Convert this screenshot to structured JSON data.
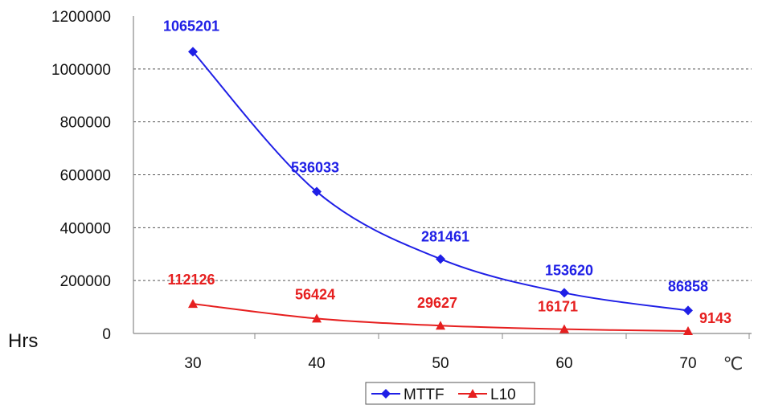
{
  "chart_data": {
    "type": "line",
    "x": [
      30,
      40,
      50,
      60,
      70
    ],
    "x_tick_labels": [
      "30",
      "40",
      "50",
      "60",
      "70"
    ],
    "y_tick_labels": [
      "0",
      "200000",
      "400000",
      "600000",
      "800000",
      "1000000",
      "1200000"
    ],
    "ylim": [
      0,
      1200000
    ],
    "ylabel": "Hrs",
    "xlabel": "℃",
    "grid": "horizontal dashed",
    "legend_position": "bottom",
    "series": [
      {
        "name": "MTTF",
        "color": "#1f1fe6",
        "marker": "diamond",
        "values": [
          1065201,
          536033,
          281461,
          153620,
          86858
        ],
        "labels": [
          "1065201",
          "536033",
          "281461",
          "153620",
          "86858"
        ]
      },
      {
        "name": "L10",
        "color": "#e61f1f",
        "marker": "triangle",
        "values": [
          112126,
          56424,
          29627,
          16171,
          9143
        ],
        "labels": [
          "112126",
          "56424",
          "29627",
          "16171",
          "9143"
        ]
      }
    ]
  }
}
